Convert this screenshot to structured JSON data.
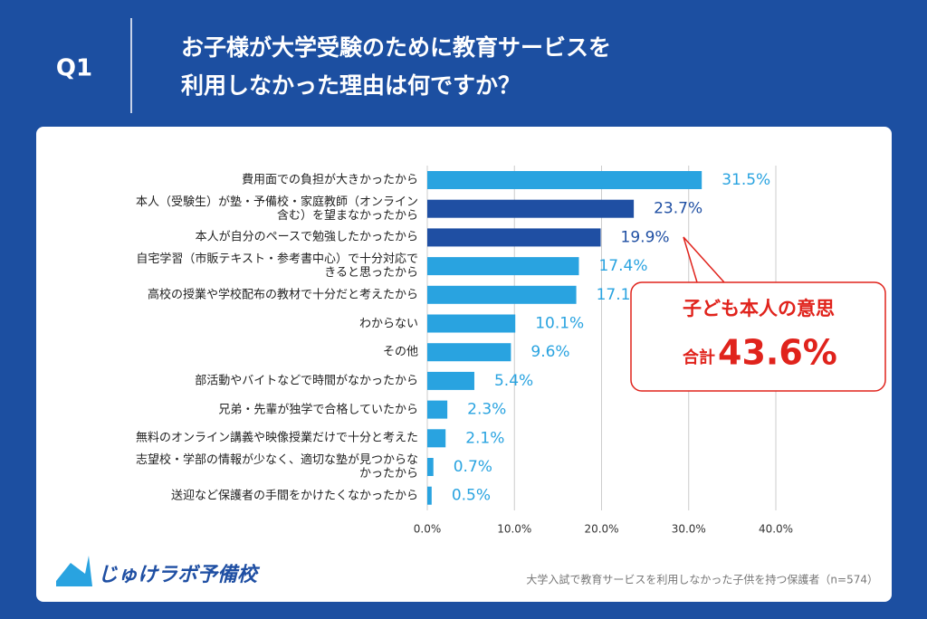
{
  "header": {
    "label": "Q1"
  },
  "chart_data": {
    "type": "bar",
    "orientation": "horizontal",
    "title": "お子様が大学受験のために教育サービスを\n利用しなかった理由は何ですか？",
    "categories": [
      "費用面での負担が大きかったから",
      "本人（受験生）が塾・予備校・家庭教師（オンライン\n含む）を望まなかったから",
      "本人が自分のペースで勉強したかったから",
      "自宅学習（市販テキスト・参考書中心）で十分対応で\nきると思ったから",
      "高校の授業や学校配布の教材で十分だと考えたから",
      "わからない",
      "その他",
      "部活動やバイトなどで時間がなかったから",
      "兄弟・先輩が独学で合格していたから",
      "無料のオンライン講義や映像授業だけで十分と考えた",
      "志望校・学部の情報が少なく、適切な塾が見つからな\nかったから",
      "送迎など保護者の手間をかけたくなかったから"
    ],
    "values": [
      31.5,
      23.7,
      19.9,
      17.4,
      17.1,
      10.1,
      9.6,
      5.4,
      2.3,
      2.1,
      0.7,
      0.5
    ],
    "value_labels": [
      "31.5%",
      "23.7%",
      "19.9%",
      "17.4%",
      "17.1%",
      "10.1%",
      "9.6%",
      "5.4%",
      "2.3%",
      "2.1%",
      "0.7%",
      "0.5%"
    ],
    "colors": [
      "#29a3e0",
      "#1f4fa3",
      "#1f4fa3",
      "#29a3e0",
      "#29a3e0",
      "#29a3e0",
      "#29a3e0",
      "#29a3e0",
      "#29a3e0",
      "#29a3e0",
      "#29a3e0",
      "#29a3e0"
    ],
    "xlim": [
      0,
      40
    ],
    "xticks": [
      {
        "value": 0,
        "label": "0.0%"
      },
      {
        "value": 10,
        "label": "10.0%"
      },
      {
        "value": 20,
        "label": "20.0%"
      },
      {
        "value": 30,
        "label": "30.0%"
      },
      {
        "value": 40,
        "label": "40.0%"
      }
    ],
    "grid": true,
    "annotation": {
      "title": "子ども本人の意思",
      "total_label": "合計",
      "total": "43.6%"
    },
    "source": "大学入試で教育サービスを利用しなかった子供を持つ保護者（n=574）"
  },
  "logo": {
    "text": "じゅけラボ予備校"
  }
}
